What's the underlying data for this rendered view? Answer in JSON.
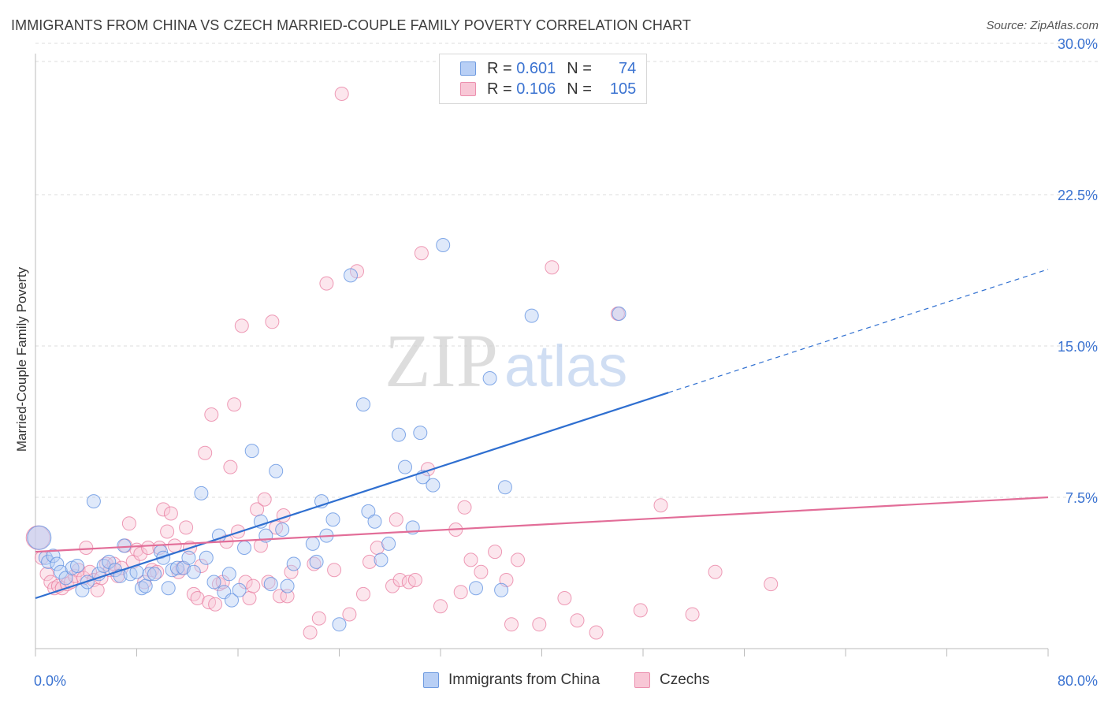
{
  "title": "IMMIGRANTS FROM CHINA VS CZECH MARRIED-COUPLE FAMILY POVERTY CORRELATION CHART",
  "source": "Source: ZipAtlas.com",
  "watermark": {
    "zip": "ZIP",
    "atlas": "atlas"
  },
  "legend": {
    "rows": [
      {
        "r_label": "R =",
        "r_value": "0.601",
        "n_label": "N =",
        "n_value": "74",
        "color": "#6f9be0",
        "fill": "#b8cff5"
      },
      {
        "r_label": "R =",
        "r_value": "0.106",
        "n_label": "N =",
        "n_value": "105",
        "color": "#ec8fae",
        "fill": "#f8c7d6"
      }
    ]
  },
  "chart_data": {
    "type": "scatter",
    "title": "IMMIGRANTS FROM CHINA VS CZECH MARRIED-COUPLE FAMILY POVERTY CORRELATION CHART",
    "xlabel": "",
    "ylabel": "Married-Couple Family Poverty",
    "xlim": [
      0,
      80
    ],
    "ylim": [
      0,
      31
    ],
    "x_tick_labels": [
      "0.0%",
      "80.0%"
    ],
    "y_ticks": [
      7.5,
      15.0,
      22.5,
      30.0
    ],
    "y_tick_labels": [
      "7.5%",
      "15.0%",
      "22.5%",
      "30.0%"
    ],
    "grid": true,
    "series": [
      {
        "name": "Immigrants from China",
        "color": "#5b8de0",
        "fill": "#b8cff5",
        "R": 0.601,
        "N": 74,
        "trend": {
          "x0": 0,
          "y0": 2.5,
          "x1": 80,
          "y1": 18.8,
          "solid_until": 50
        },
        "points": [
          [
            0.3,
            5.5
          ],
          [
            0.8,
            4.5
          ],
          [
            1.0,
            4.3
          ],
          [
            1.4,
            4.6
          ],
          [
            1.7,
            4.2
          ],
          [
            2.0,
            3.8
          ],
          [
            2.4,
            3.5
          ],
          [
            2.9,
            4.0
          ],
          [
            3.3,
            4.1
          ],
          [
            3.7,
            2.9
          ],
          [
            4.1,
            3.3
          ],
          [
            4.6,
            7.3
          ],
          [
            5.0,
            3.7
          ],
          [
            5.4,
            4.1
          ],
          [
            5.8,
            4.3
          ],
          [
            6.3,
            3.9
          ],
          [
            6.7,
            3.6
          ],
          [
            7.0,
            5.1
          ],
          [
            7.5,
            3.7
          ],
          [
            8.0,
            3.8
          ],
          [
            8.4,
            3.0
          ],
          [
            8.7,
            3.1
          ],
          [
            9.0,
            3.7
          ],
          [
            9.4,
            3.7
          ],
          [
            9.9,
            4.8
          ],
          [
            10.1,
            4.5
          ],
          [
            10.5,
            3.0
          ],
          [
            10.8,
            3.9
          ],
          [
            11.2,
            4.0
          ],
          [
            11.7,
            4.0
          ],
          [
            12.1,
            4.5
          ],
          [
            12.5,
            3.8
          ],
          [
            13.1,
            7.7
          ],
          [
            13.5,
            4.5
          ],
          [
            14.1,
            3.3
          ],
          [
            14.5,
            5.6
          ],
          [
            14.9,
            2.8
          ],
          [
            15.3,
            3.7
          ],
          [
            15.5,
            2.4
          ],
          [
            16.1,
            2.9
          ],
          [
            16.5,
            5.0
          ],
          [
            17.1,
            9.8
          ],
          [
            17.8,
            6.3
          ],
          [
            18.2,
            5.6
          ],
          [
            18.6,
            3.2
          ],
          [
            19.0,
            8.8
          ],
          [
            19.5,
            5.9
          ],
          [
            19.9,
            3.1
          ],
          [
            20.4,
            4.2
          ],
          [
            21.9,
            5.2
          ],
          [
            22.2,
            4.3
          ],
          [
            22.6,
            7.3
          ],
          [
            23.0,
            5.6
          ],
          [
            23.5,
            6.4
          ],
          [
            24.0,
            1.2
          ],
          [
            24.9,
            18.5
          ],
          [
            25.9,
            12.1
          ],
          [
            26.3,
            6.8
          ],
          [
            26.8,
            6.3
          ],
          [
            27.3,
            4.4
          ],
          [
            27.9,
            5.2
          ],
          [
            28.7,
            10.6
          ],
          [
            29.2,
            9.0
          ],
          [
            29.8,
            6.0
          ],
          [
            30.4,
            10.7
          ],
          [
            30.6,
            8.5
          ],
          [
            31.4,
            8.1
          ],
          [
            32.2,
            20.0
          ],
          [
            34.8,
            3.0
          ],
          [
            35.9,
            13.4
          ],
          [
            36.8,
            2.9
          ],
          [
            37.1,
            8.0
          ],
          [
            39.2,
            16.5
          ],
          [
            46.1,
            16.6
          ]
        ]
      },
      {
        "name": "Czechs",
        "color": "#e87b9f",
        "fill": "#f8c7d6",
        "R": 0.106,
        "N": 105,
        "trend": {
          "x0": 0,
          "y0": 4.8,
          "x1": 80,
          "y1": 7.5
        },
        "points": [
          [
            0.2,
            5.5
          ],
          [
            0.5,
            4.5
          ],
          [
            0.9,
            3.7
          ],
          [
            1.2,
            3.3
          ],
          [
            1.5,
            3.0
          ],
          [
            1.8,
            3.1
          ],
          [
            2.1,
            3.0
          ],
          [
            2.5,
            3.2
          ],
          [
            2.8,
            3.3
          ],
          [
            3.1,
            3.6
          ],
          [
            3.4,
            3.9
          ],
          [
            3.8,
            3.5
          ],
          [
            4.0,
            5.0
          ],
          [
            4.3,
            3.8
          ],
          [
            4.6,
            3.4
          ],
          [
            4.9,
            2.9
          ],
          [
            5.2,
            3.5
          ],
          [
            5.6,
            4.2
          ],
          [
            5.9,
            3.9
          ],
          [
            6.2,
            4.2
          ],
          [
            6.5,
            3.6
          ],
          [
            6.8,
            4.0
          ],
          [
            7.1,
            5.1
          ],
          [
            7.4,
            6.2
          ],
          [
            7.7,
            4.3
          ],
          [
            8.0,
            4.9
          ],
          [
            8.3,
            4.7
          ],
          [
            8.6,
            3.3
          ],
          [
            8.9,
            5.0
          ],
          [
            9.2,
            3.9
          ],
          [
            9.6,
            3.8
          ],
          [
            9.8,
            5.0
          ],
          [
            10.1,
            6.9
          ],
          [
            10.4,
            5.8
          ],
          [
            10.7,
            6.7
          ],
          [
            11.0,
            5.1
          ],
          [
            11.3,
            3.8
          ],
          [
            11.6,
            4.0
          ],
          [
            11.9,
            6.0
          ],
          [
            12.2,
            5.0
          ],
          [
            12.5,
            2.7
          ],
          [
            12.8,
            2.5
          ],
          [
            13.1,
            4.1
          ],
          [
            13.4,
            9.7
          ],
          [
            13.7,
            2.3
          ],
          [
            13.9,
            11.6
          ],
          [
            14.2,
            2.2
          ],
          [
            14.5,
            3.2
          ],
          [
            14.8,
            3.3
          ],
          [
            15.1,
            5.3
          ],
          [
            15.4,
            9.0
          ],
          [
            15.7,
            12.1
          ],
          [
            16.0,
            5.8
          ],
          [
            16.3,
            16.0
          ],
          [
            16.6,
            3.3
          ],
          [
            16.9,
            2.5
          ],
          [
            17.2,
            3.1
          ],
          [
            17.5,
            6.9
          ],
          [
            17.8,
            5.1
          ],
          [
            18.1,
            7.4
          ],
          [
            18.4,
            3.3
          ],
          [
            18.7,
            16.2
          ],
          [
            19.0,
            6.0
          ],
          [
            19.3,
            2.6
          ],
          [
            19.6,
            6.6
          ],
          [
            19.9,
            2.6
          ],
          [
            20.2,
            3.8
          ],
          [
            21.7,
            0.8
          ],
          [
            22.0,
            4.2
          ],
          [
            22.4,
            1.5
          ],
          [
            23.0,
            18.1
          ],
          [
            23.6,
            3.9
          ],
          [
            24.2,
            27.5
          ],
          [
            24.8,
            1.7
          ],
          [
            25.4,
            18.7
          ],
          [
            25.9,
            2.7
          ],
          [
            26.4,
            4.3
          ],
          [
            27.0,
            5.0
          ],
          [
            28.2,
            3.1
          ],
          [
            28.5,
            6.4
          ],
          [
            28.8,
            3.4
          ],
          [
            29.5,
            3.3
          ],
          [
            30.0,
            3.4
          ],
          [
            30.5,
            19.6
          ],
          [
            31.0,
            8.9
          ],
          [
            32.0,
            2.1
          ],
          [
            33.2,
            5.9
          ],
          [
            33.6,
            2.8
          ],
          [
            33.9,
            7.0
          ],
          [
            34.4,
            4.4
          ],
          [
            35.2,
            3.8
          ],
          [
            36.3,
            4.8
          ],
          [
            37.2,
            3.4
          ],
          [
            37.6,
            1.2
          ],
          [
            38.1,
            4.4
          ],
          [
            39.8,
            1.2
          ],
          [
            40.8,
            18.9
          ],
          [
            41.8,
            2.5
          ],
          [
            42.8,
            1.4
          ],
          [
            44.3,
            0.8
          ],
          [
            46.0,
            16.6
          ],
          [
            47.8,
            1.9
          ],
          [
            49.4,
            7.1
          ],
          [
            51.9,
            1.7
          ],
          [
            53.7,
            3.8
          ],
          [
            58.1,
            3.2
          ]
        ]
      }
    ]
  }
}
